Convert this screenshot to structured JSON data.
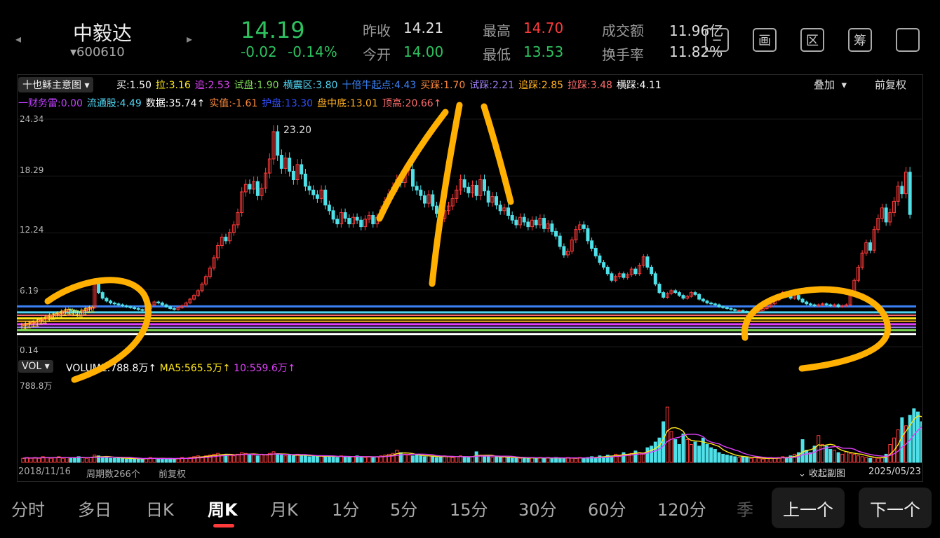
{
  "header": {
    "prev_glyph": "◂",
    "next_glyph": "▸",
    "name": "中毅达",
    "code": "▾600610",
    "price": "14.19",
    "change": "-0.02",
    "change_pct": "-0.14%",
    "stats": [
      {
        "label": "昨收",
        "value": "14.21",
        "color": "w"
      },
      {
        "label": "今开",
        "value": "14.00",
        "color": "g"
      },
      {
        "label": "最高",
        "value": "14.70",
        "color": "r"
      },
      {
        "label": "最低",
        "value": "13.53",
        "color": "g"
      },
      {
        "label": "成交额",
        "value": "11.96亿",
        "color": "w"
      },
      {
        "label": "换手率",
        "value": "11.82%",
        "color": "w"
      }
    ],
    "tools": [
      "−",
      "画",
      "区",
      "筹",
      ""
    ]
  },
  "indicator": {
    "name": "十也稣主意图",
    "row1": [
      {
        "label": "买:",
        "value": "1.50",
        "color": "#ffffff"
      },
      {
        "label": "拉:",
        "value": "3.16",
        "color": "#ffe81a"
      },
      {
        "label": "追:",
        "value": "2.53",
        "color": "#e040fb"
      },
      {
        "label": "试盘:",
        "value": "1.90",
        "color": "#7ed957"
      },
      {
        "label": "横震区:",
        "value": "3.80",
        "color": "#4fd3f0"
      },
      {
        "label": "十倍牛起点:",
        "value": "4.43",
        "color": "#3b82f6"
      },
      {
        "label": "买踩:",
        "value": "1.70",
        "color": "#ff8a3d"
      },
      {
        "label": "试踩:",
        "value": "2.21",
        "color": "#9b7cf0"
      },
      {
        "label": "追踩:",
        "value": "2.85",
        "color": "#ffb020"
      },
      {
        "label": "拉踩:",
        "value": "3.48",
        "color": "#ff6b6b"
      },
      {
        "label": "横踩:",
        "value": "4.11",
        "color": "#ffffff"
      }
    ],
    "row2": [
      {
        "label": "一财务雷:",
        "value": "0.00",
        "color": "#c040ff"
      },
      {
        "label": "流通股:",
        "value": "4.49",
        "color": "#4fd3f0"
      },
      {
        "label": "数据:",
        "value": "35.74↑",
        "color": "#ffffff"
      },
      {
        "label": "实值:",
        "value": "-1.61",
        "color": "#ff8a3d"
      },
      {
        "label": "护盘:",
        "value": "13.30",
        "color": "#3050ff"
      },
      {
        "label": "盘中底:",
        "value": "13.01",
        "color": "#ffb020"
      },
      {
        "label": "顶高:",
        "value": "20.66↑",
        "color": "#ff6b6b"
      }
    ],
    "overlay": "叠加",
    "rights": "前复权"
  },
  "price_axis": [
    "24.34",
    "18.29",
    "12.24",
    "6.19",
    "0.14"
  ],
  "peak_label": "23.20",
  "volume": {
    "name": "VOL",
    "vol_label": "VOLUME:",
    "vol_value": "788.8万↑",
    "ma5_label": "MA5:",
    "ma5_value": "565.5万↑",
    "ma10_label": "10:",
    "ma10_value": "559.6万↑",
    "axis_top": "788.8万"
  },
  "footer": {
    "start_date": "2018/11/16",
    "periods": "周期数266个",
    "rights": "前复权",
    "collapse": "收起副图",
    "end_date": "2025/05/23"
  },
  "tabs": [
    "分时",
    "多日",
    "日K",
    "周K",
    "月K",
    "1分",
    "5分",
    "15分",
    "30分",
    "60分",
    "120分",
    "季"
  ],
  "active_tab": "周K",
  "buttons": {
    "prev": "上一个",
    "next": "下一个"
  },
  "chart_data": {
    "type": "candlestick",
    "ylim": [
      0.14,
      24.34
    ],
    "close": [
      2.5,
      2.6,
      2.7,
      2.8,
      3.0,
      3.1,
      3.3,
      3.5,
      3.6,
      3.7,
      3.9,
      4.1,
      4.0,
      3.9,
      3.8,
      4.0,
      4.2,
      4.3,
      7.2,
      5.9,
      5.3,
      5.0,
      4.8,
      4.7,
      4.6,
      4.5,
      4.4,
      4.3,
      4.2,
      4.1,
      4.0,
      4.2,
      4.6,
      4.9,
      4.8,
      4.6,
      4.4,
      4.2,
      4.1,
      4.3,
      4.5,
      4.8,
      5.2,
      5.6,
      6.1,
      6.8,
      7.6,
      8.5,
      9.6,
      10.9,
      11.8,
      11.4,
      12.3,
      13.1,
      14.4,
      16.6,
      17.4,
      16.9,
      17.7,
      16.2,
      17.0,
      18.6,
      20.1,
      23.0,
      20.5,
      19.1,
      20.2,
      18.8,
      17.9,
      19.5,
      18.5,
      17.2,
      16.8,
      16.3,
      15.9,
      16.8,
      15.2,
      14.6,
      13.7,
      13.2,
      14.4,
      13.8,
      13.2,
      13.9,
      13.6,
      12.9,
      13.7,
      14.1,
      13.2,
      13.9,
      14.7,
      15.6,
      16.4,
      17.1,
      17.9,
      17.6,
      18.9,
      19.0,
      17.2,
      16.8,
      16.2,
      15.4,
      16.3,
      15.1,
      14.3,
      13.8,
      14.6,
      15.1,
      15.9,
      16.8,
      17.9,
      17.1,
      16.5,
      17.3,
      16.2,
      17.9,
      16.7,
      15.5,
      16.1,
      15.2,
      14.6,
      14.9,
      14.1,
      13.6,
      13.1,
      13.9,
      13.4,
      12.9,
      13.6,
      13.1,
      13.8,
      12.7,
      13.2,
      12.4,
      11.9,
      10.8,
      9.9,
      10.3,
      11.5,
      12.6,
      13.1,
      12.7,
      11.4,
      10.6,
      9.8,
      9.1,
      8.6,
      7.9,
      7.2,
      7.6,
      7.9,
      7.5,
      7.8,
      8.4,
      7.9,
      8.8,
      9.7,
      8.6,
      7.9,
      6.8,
      5.9,
      5.4,
      5.8,
      6.1,
      5.9,
      5.6,
      5.3,
      5.5,
      5.9,
      5.7,
      5.2,
      5.0,
      4.8,
      4.7,
      4.6,
      4.4,
      4.3,
      4.2,
      4.1,
      4.0,
      4.0,
      3.9,
      3.8,
      3.8,
      3.9,
      4.0,
      4.2,
      4.4,
      4.7,
      5.1,
      5.4,
      5.9,
      5.6,
      5.3,
      5.6,
      5.2,
      4.9,
      4.7,
      4.6,
      4.5,
      4.6,
      4.7,
      4.6,
      4.5,
      4.6,
      4.4,
      4.5,
      4.6,
      5.6,
      7.2,
      8.6,
      10.1,
      11.2,
      10.4,
      12.6,
      13.8,
      14.9,
      13.4,
      14.4,
      15.6,
      17.2,
      16.4,
      18.7,
      14.2
    ],
    "volume_pct": [
      0.05,
      0.06,
      0.05,
      0.06,
      0.05,
      0.07,
      0.06,
      0.05,
      0.06,
      0.07,
      0.05,
      0.06,
      0.05,
      0.06,
      0.07,
      0.06,
      0.05,
      0.06,
      0.09,
      0.08,
      0.07,
      0.06,
      0.05,
      0.05,
      0.06,
      0.05,
      0.04,
      0.05,
      0.04,
      0.05,
      0.04,
      0.05,
      0.06,
      0.05,
      0.04,
      0.05,
      0.04,
      0.05,
      0.04,
      0.05,
      0.06,
      0.05,
      0.06,
      0.07,
      0.08,
      0.07,
      0.08,
      0.09,
      0.1,
      0.11,
      0.09,
      0.1,
      0.09,
      0.08,
      0.1,
      0.12,
      0.11,
      0.1,
      0.09,
      0.08,
      0.1,
      0.09,
      0.11,
      0.13,
      0.1,
      0.09,
      0.08,
      0.09,
      0.08,
      0.1,
      0.09,
      0.08,
      0.07,
      0.08,
      0.07,
      0.08,
      0.07,
      0.08,
      0.07,
      0.06,
      0.08,
      0.07,
      0.06,
      0.07,
      0.08,
      0.07,
      0.06,
      0.07,
      0.06,
      0.07,
      0.08,
      0.09,
      0.1,
      0.11,
      0.15,
      0.12,
      0.1,
      0.09,
      0.08,
      0.09,
      0.08,
      0.07,
      0.08,
      0.07,
      0.06,
      0.07,
      0.08,
      0.07,
      0.06,
      0.07,
      0.08,
      0.07,
      0.06,
      0.07,
      0.13,
      0.09,
      0.08,
      0.07,
      0.06,
      0.07,
      0.06,
      0.07,
      0.06,
      0.05,
      0.06,
      0.05,
      0.06,
      0.05,
      0.06,
      0.05,
      0.06,
      0.05,
      0.06,
      0.05,
      0.06,
      0.05,
      0.05,
      0.06,
      0.05,
      0.05,
      0.06,
      0.05,
      0.06,
      0.07,
      0.06,
      0.08,
      0.07,
      0.09,
      0.08,
      0.1,
      0.09,
      0.12,
      0.1,
      0.11,
      0.14,
      0.12,
      0.1,
      0.18,
      0.2,
      0.25,
      0.3,
      0.5,
      0.68,
      0.38,
      0.28,
      0.22,
      0.35,
      0.28,
      0.22,
      0.25,
      0.2,
      0.3,
      0.22,
      0.18,
      0.16,
      0.12,
      0.1,
      0.09,
      0.08,
      0.07,
      0.06,
      0.07,
      0.06,
      0.05,
      0.06,
      0.05,
      0.04,
      0.05,
      0.06,
      0.05,
      0.06,
      0.07,
      0.06,
      0.08,
      0.1,
      0.12,
      0.28,
      0.15,
      0.12,
      0.2,
      0.33,
      0.22,
      0.2,
      0.16,
      0.15,
      0.12,
      0.1,
      0.13,
      0.11,
      0.1,
      0.08,
      0.07,
      0.06,
      0.05,
      0.06,
      0.05,
      0.06,
      0.1,
      0.22,
      0.3,
      0.4,
      0.55,
      0.45,
      0.58,
      0.66,
      0.62,
      0.5,
      0.55,
      0.78,
      0.68,
      0.8,
      0.86,
      1.0
    ]
  }
}
